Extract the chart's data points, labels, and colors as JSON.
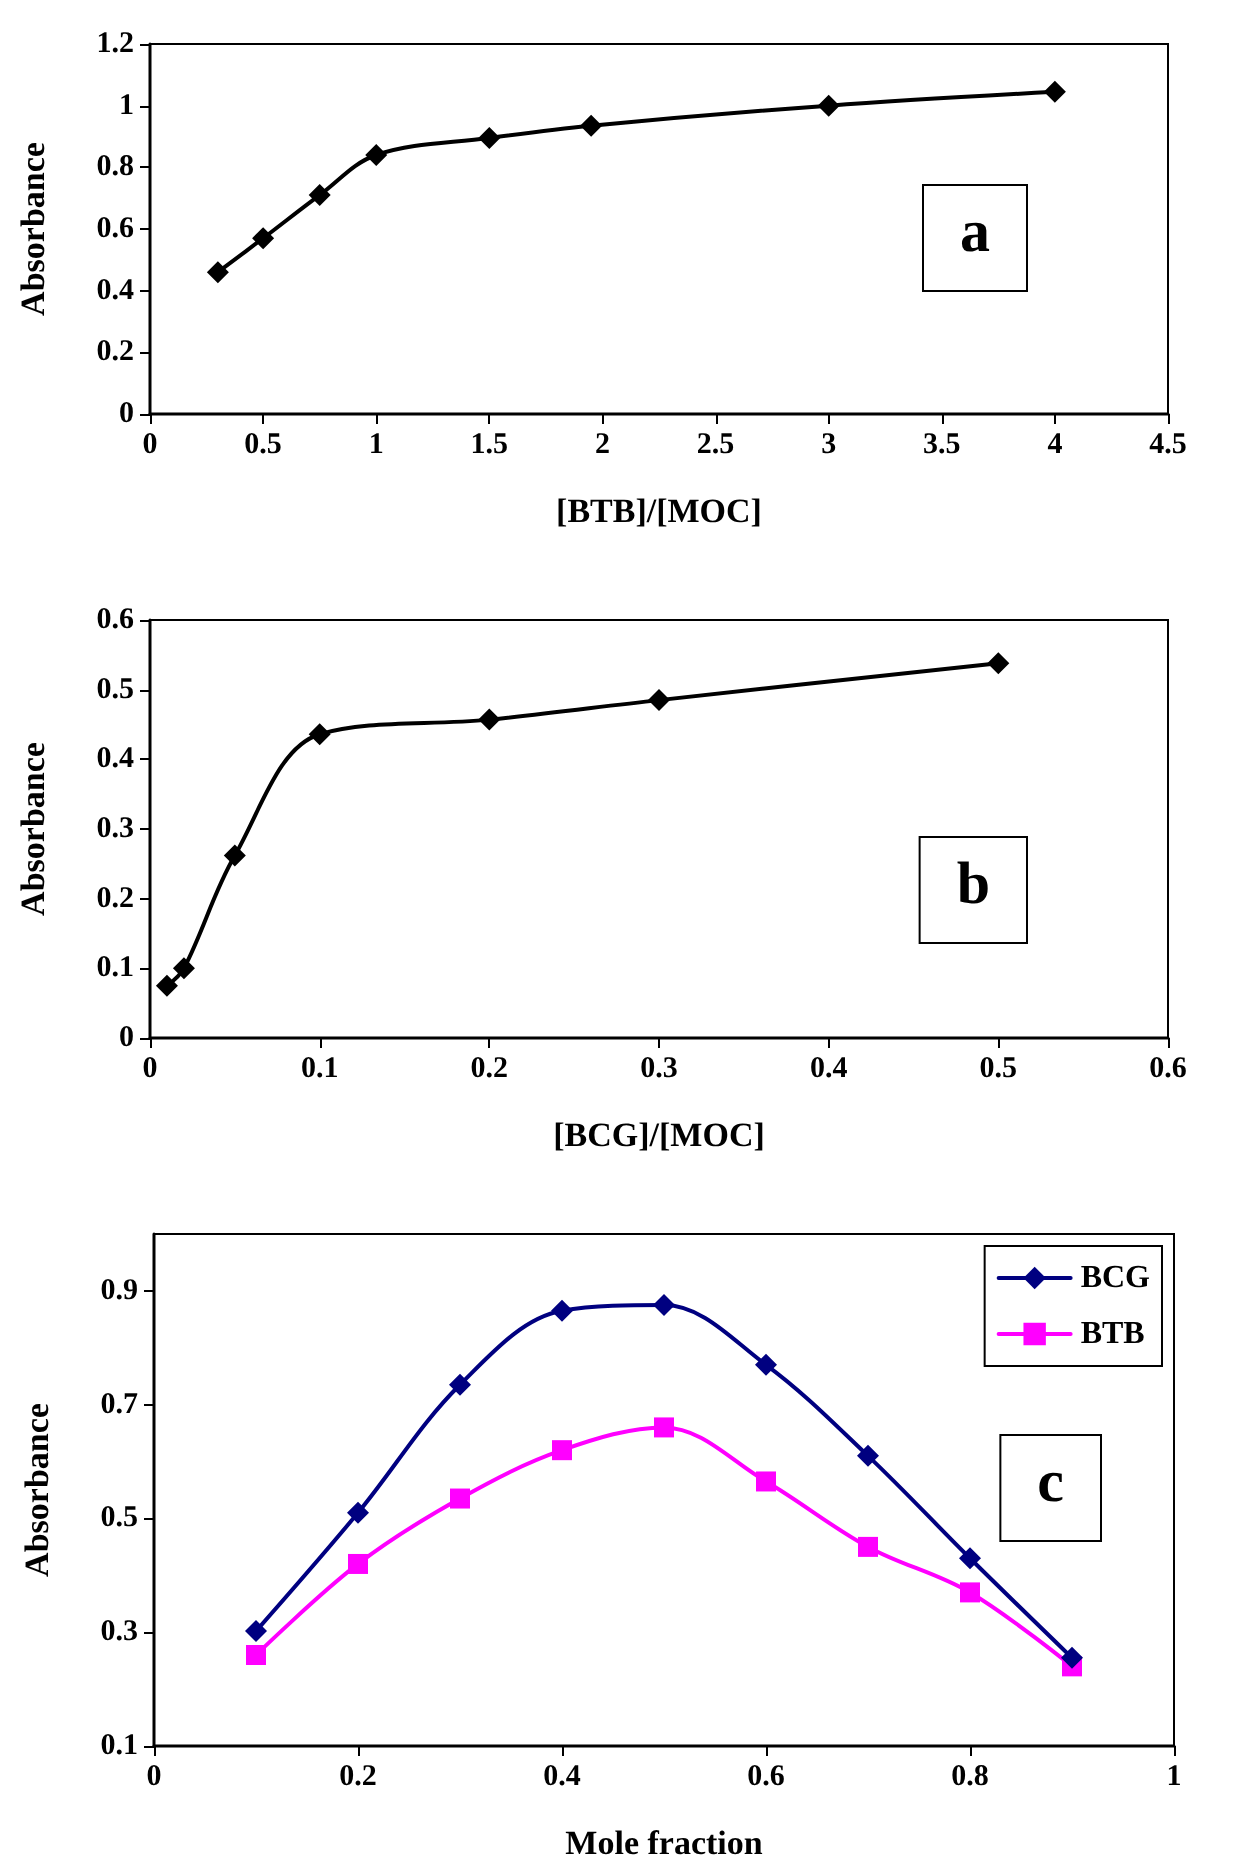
{
  "chart_data": [
    {
      "type": "line",
      "xlabel": "[BTB]/[MOC]",
      "ylabel": "Absorbance",
      "annotations": [
        "a"
      ],
      "marker": "diamond",
      "grid": false,
      "legend": false,
      "series": [
        {
          "color": "#000000",
          "x": [
            0.3,
            0.5,
            0.75,
            1,
            1.5,
            1.95,
            3,
            4
          ],
          "values": [
            0.46,
            0.57,
            0.71,
            0.84,
            0.895,
            0.935,
            1.0,
            1.045
          ]
        }
      ],
      "xlim": [
        0,
        4.5
      ],
      "xticks": [
        0,
        0.5,
        1,
        1.5,
        2,
        2.5,
        3,
        3.5,
        4,
        4.5
      ],
      "ylim": [
        0,
        1.2
      ],
      "yticks": [
        0,
        0.2,
        0.4,
        0.6,
        0.8,
        1,
        1.2
      ]
    },
    {
      "type": "line",
      "xlabel": "[BCG]/[MOC]",
      "ylabel": "Absorbance",
      "annotations": [
        "b"
      ],
      "marker": "diamond",
      "grid": false,
      "legend": false,
      "series": [
        {
          "color": "#000000",
          "x": [
            0.01,
            0.02,
            0.05,
            0.1,
            0.2,
            0.3,
            0.5
          ],
          "values": [
            0.075,
            0.1,
            0.262,
            0.436,
            0.457,
            0.485,
            0.538
          ]
        }
      ],
      "xlim": [
        0,
        0.6
      ],
      "xticks": [
        0,
        0.1,
        0.2,
        0.3,
        0.4,
        0.5,
        0.6
      ],
      "ylim": [
        0,
        0.6
      ],
      "yticks": [
        0,
        0.1,
        0.2,
        0.3,
        0.4,
        0.5,
        0.6
      ]
    },
    {
      "type": "line",
      "xlabel": "Mole fraction",
      "ylabel": "Absorbance",
      "annotations": [
        "c"
      ],
      "grid": false,
      "legend": "top right",
      "series": [
        {
          "name": "BCG",
          "color": "#000080",
          "marker": "diamond",
          "x": [
            0.1,
            0.2,
            0.3,
            0.4,
            0.5,
            0.6,
            0.7,
            0.8,
            0.9
          ],
          "values": [
            0.302,
            0.51,
            0.735,
            0.865,
            0.875,
            0.77,
            0.61,
            0.43,
            0.255
          ]
        },
        {
          "name": "BTB",
          "color": "#ff00ff",
          "marker": "square",
          "x": [
            0.1,
            0.2,
            0.3,
            0.4,
            0.5,
            0.6,
            0.7,
            0.8,
            0.9
          ],
          "values": [
            0.26,
            0.42,
            0.535,
            0.62,
            0.66,
            0.565,
            0.45,
            0.37,
            0.24
          ]
        }
      ],
      "xlim": [
        0,
        1
      ],
      "xticks": [
        0,
        0.2,
        0.4,
        0.6,
        0.8,
        1
      ],
      "ylim": [
        0.1,
        1.0
      ],
      "yticks": [
        0.1,
        0.3,
        0.5,
        0.7,
        0.9
      ]
    }
  ]
}
